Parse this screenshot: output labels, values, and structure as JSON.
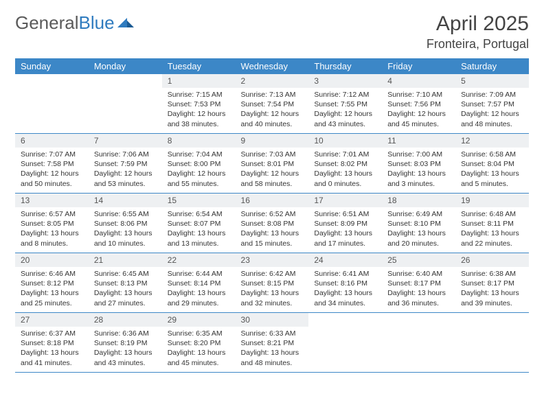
{
  "brand": {
    "part1": "General",
    "part2": "Blue"
  },
  "title": "April 2025",
  "location": "Fronteira, Portugal",
  "colors": {
    "header_bg": "#3c87c7",
    "header_text": "#ffffff",
    "daynum_bg": "#eef0f2",
    "border": "#3c87c7",
    "logo_gray": "#5a5a5a",
    "logo_blue": "#2f7bbf"
  },
  "weekdays": [
    "Sunday",
    "Monday",
    "Tuesday",
    "Wednesday",
    "Thursday",
    "Friday",
    "Saturday"
  ],
  "weeks": [
    [
      {
        "n": "",
        "sr": "",
        "ss": "",
        "dl": ""
      },
      {
        "n": "",
        "sr": "",
        "ss": "",
        "dl": ""
      },
      {
        "n": "1",
        "sr": "Sunrise: 7:15 AM",
        "ss": "Sunset: 7:53 PM",
        "dl": "Daylight: 12 hours and 38 minutes."
      },
      {
        "n": "2",
        "sr": "Sunrise: 7:13 AM",
        "ss": "Sunset: 7:54 PM",
        "dl": "Daylight: 12 hours and 40 minutes."
      },
      {
        "n": "3",
        "sr": "Sunrise: 7:12 AM",
        "ss": "Sunset: 7:55 PM",
        "dl": "Daylight: 12 hours and 43 minutes."
      },
      {
        "n": "4",
        "sr": "Sunrise: 7:10 AM",
        "ss": "Sunset: 7:56 PM",
        "dl": "Daylight: 12 hours and 45 minutes."
      },
      {
        "n": "5",
        "sr": "Sunrise: 7:09 AM",
        "ss": "Sunset: 7:57 PM",
        "dl": "Daylight: 12 hours and 48 minutes."
      }
    ],
    [
      {
        "n": "6",
        "sr": "Sunrise: 7:07 AM",
        "ss": "Sunset: 7:58 PM",
        "dl": "Daylight: 12 hours and 50 minutes."
      },
      {
        "n": "7",
        "sr": "Sunrise: 7:06 AM",
        "ss": "Sunset: 7:59 PM",
        "dl": "Daylight: 12 hours and 53 minutes."
      },
      {
        "n": "8",
        "sr": "Sunrise: 7:04 AM",
        "ss": "Sunset: 8:00 PM",
        "dl": "Daylight: 12 hours and 55 minutes."
      },
      {
        "n": "9",
        "sr": "Sunrise: 7:03 AM",
        "ss": "Sunset: 8:01 PM",
        "dl": "Daylight: 12 hours and 58 minutes."
      },
      {
        "n": "10",
        "sr": "Sunrise: 7:01 AM",
        "ss": "Sunset: 8:02 PM",
        "dl": "Daylight: 13 hours and 0 minutes."
      },
      {
        "n": "11",
        "sr": "Sunrise: 7:00 AM",
        "ss": "Sunset: 8:03 PM",
        "dl": "Daylight: 13 hours and 3 minutes."
      },
      {
        "n": "12",
        "sr": "Sunrise: 6:58 AM",
        "ss": "Sunset: 8:04 PM",
        "dl": "Daylight: 13 hours and 5 minutes."
      }
    ],
    [
      {
        "n": "13",
        "sr": "Sunrise: 6:57 AM",
        "ss": "Sunset: 8:05 PM",
        "dl": "Daylight: 13 hours and 8 minutes."
      },
      {
        "n": "14",
        "sr": "Sunrise: 6:55 AM",
        "ss": "Sunset: 8:06 PM",
        "dl": "Daylight: 13 hours and 10 minutes."
      },
      {
        "n": "15",
        "sr": "Sunrise: 6:54 AM",
        "ss": "Sunset: 8:07 PM",
        "dl": "Daylight: 13 hours and 13 minutes."
      },
      {
        "n": "16",
        "sr": "Sunrise: 6:52 AM",
        "ss": "Sunset: 8:08 PM",
        "dl": "Daylight: 13 hours and 15 minutes."
      },
      {
        "n": "17",
        "sr": "Sunrise: 6:51 AM",
        "ss": "Sunset: 8:09 PM",
        "dl": "Daylight: 13 hours and 17 minutes."
      },
      {
        "n": "18",
        "sr": "Sunrise: 6:49 AM",
        "ss": "Sunset: 8:10 PM",
        "dl": "Daylight: 13 hours and 20 minutes."
      },
      {
        "n": "19",
        "sr": "Sunrise: 6:48 AM",
        "ss": "Sunset: 8:11 PM",
        "dl": "Daylight: 13 hours and 22 minutes."
      }
    ],
    [
      {
        "n": "20",
        "sr": "Sunrise: 6:46 AM",
        "ss": "Sunset: 8:12 PM",
        "dl": "Daylight: 13 hours and 25 minutes."
      },
      {
        "n": "21",
        "sr": "Sunrise: 6:45 AM",
        "ss": "Sunset: 8:13 PM",
        "dl": "Daylight: 13 hours and 27 minutes."
      },
      {
        "n": "22",
        "sr": "Sunrise: 6:44 AM",
        "ss": "Sunset: 8:14 PM",
        "dl": "Daylight: 13 hours and 29 minutes."
      },
      {
        "n": "23",
        "sr": "Sunrise: 6:42 AM",
        "ss": "Sunset: 8:15 PM",
        "dl": "Daylight: 13 hours and 32 minutes."
      },
      {
        "n": "24",
        "sr": "Sunrise: 6:41 AM",
        "ss": "Sunset: 8:16 PM",
        "dl": "Daylight: 13 hours and 34 minutes."
      },
      {
        "n": "25",
        "sr": "Sunrise: 6:40 AM",
        "ss": "Sunset: 8:17 PM",
        "dl": "Daylight: 13 hours and 36 minutes."
      },
      {
        "n": "26",
        "sr": "Sunrise: 6:38 AM",
        "ss": "Sunset: 8:17 PM",
        "dl": "Daylight: 13 hours and 39 minutes."
      }
    ],
    [
      {
        "n": "27",
        "sr": "Sunrise: 6:37 AM",
        "ss": "Sunset: 8:18 PM",
        "dl": "Daylight: 13 hours and 41 minutes."
      },
      {
        "n": "28",
        "sr": "Sunrise: 6:36 AM",
        "ss": "Sunset: 8:19 PM",
        "dl": "Daylight: 13 hours and 43 minutes."
      },
      {
        "n": "29",
        "sr": "Sunrise: 6:35 AM",
        "ss": "Sunset: 8:20 PM",
        "dl": "Daylight: 13 hours and 45 minutes."
      },
      {
        "n": "30",
        "sr": "Sunrise: 6:33 AM",
        "ss": "Sunset: 8:21 PM",
        "dl": "Daylight: 13 hours and 48 minutes."
      },
      {
        "n": "",
        "sr": "",
        "ss": "",
        "dl": ""
      },
      {
        "n": "",
        "sr": "",
        "ss": "",
        "dl": ""
      },
      {
        "n": "",
        "sr": "",
        "ss": "",
        "dl": ""
      }
    ]
  ]
}
